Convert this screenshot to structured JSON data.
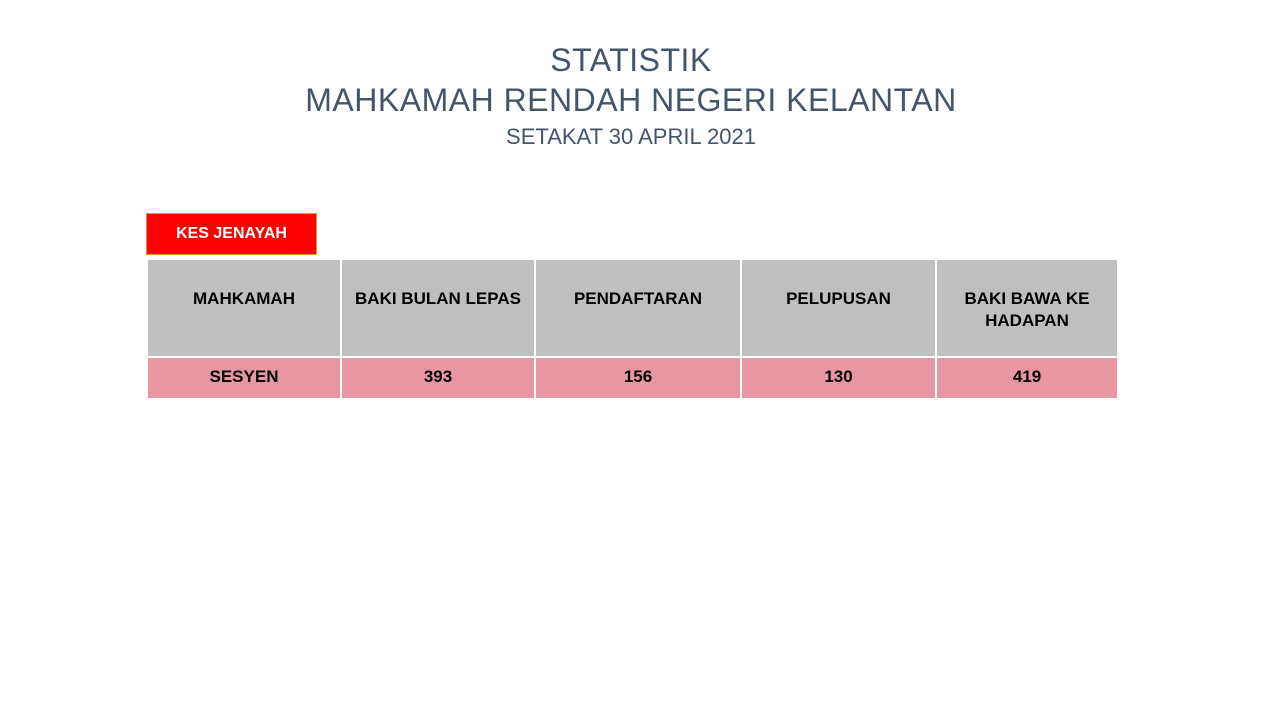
{
  "title": {
    "line1": "STATISTIK",
    "line2": "MAHKAMAH RENDAH NEGERI KELANTAN",
    "line3": "SETAKAT 30 APRIL 2021"
  },
  "category": {
    "label": "KES JENAYAH",
    "color": "#ff0000"
  },
  "table": {
    "headers": [
      "MAHKAMAH",
      "BAKI BULAN LEPAS",
      "PENDAFTARAN",
      "PELUPUSAN",
      "BAKI BAWA KE HADAPAN"
    ],
    "rows": [
      [
        "SESYEN",
        "393",
        "156",
        "130",
        "419"
      ]
    ],
    "header_color": "#bfbfbf",
    "row_color": "#e996a3"
  },
  "title_color": "#44546a"
}
